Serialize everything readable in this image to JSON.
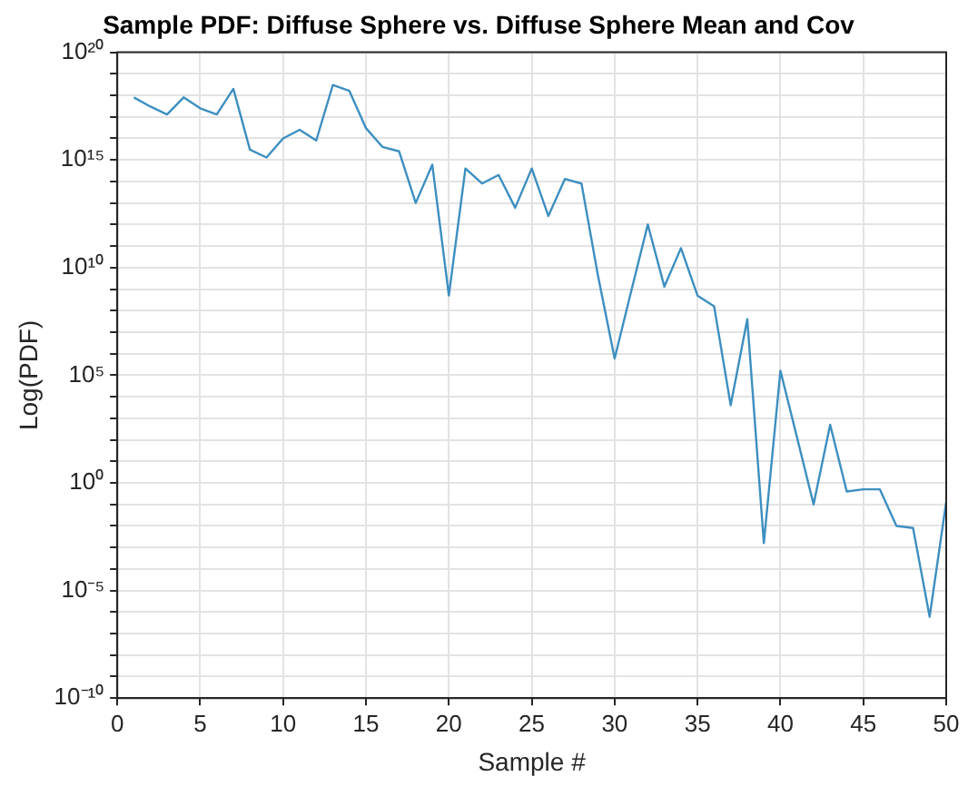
{
  "chart_data": {
    "type": "line",
    "title": "Sample PDF: Diffuse Sphere vs. Diffuse Sphere Mean and Cov",
    "xlabel": "Sample #",
    "ylabel": "Log(PDF)",
    "x": [
      1,
      2,
      3,
      4,
      5,
      6,
      7,
      8,
      9,
      10,
      11,
      12,
      13,
      14,
      15,
      16,
      17,
      18,
      19,
      20,
      21,
      22,
      23,
      24,
      25,
      26,
      27,
      28,
      29,
      30,
      31,
      32,
      33,
      34,
      35,
      36,
      37,
      38,
      39,
      40,
      41,
      42,
      43,
      44,
      45,
      46,
      47,
      48,
      49,
      50
    ],
    "series": [
      {
        "color": "#3d8fc0",
        "values": [
          8e+17,
          3e+17,
          1.3e+17,
          8e+17,
          2.5e+17,
          1.3e+17,
          2e+18,
          3000000000000000.0,
          1300000000000000.0,
          1e+16,
          2.5e+16,
          8000000000000000.0,
          3e+18,
          1.6e+18,
          3e+16,
          4000000000000000.0,
          2500000000000000.0,
          10000000000000.0,
          600000000000000.0,
          500000000.0,
          400000000000000.0,
          80000000000000.0,
          200000000000000.0,
          6000000000000.0,
          400000000000000.0,
          2500000000000.0,
          130000000000000.0,
          80000000000000.0,
          4000000000.0,
          600000.0,
          800000000.0,
          1000000000000.0,
          1300000000.0,
          80000000000.0,
          500000000.0,
          160000000.0,
          4000.0,
          40000000.0,
          0.0016,
          160000.0,
          130,
          0.1,
          500,
          0.4,
          0.5,
          0.5,
          0.01,
          0.008,
          6e-07,
          0.13
        ]
      }
    ],
    "xlim": [
      0,
      50
    ],
    "xticks": [
      0,
      5,
      10,
      15,
      20,
      25,
      30,
      35,
      40,
      45,
      50
    ],
    "log": "y",
    "ylim": [
      1e-10,
      1e+20
    ],
    "yticks": [
      {
        "value": 1e-10,
        "label": "10⁻¹⁰"
      },
      {
        "value": 1e-09,
        "label": null
      },
      {
        "value": 1e-08,
        "label": null
      },
      {
        "value": 1e-07,
        "label": null
      },
      {
        "value": 1e-06,
        "label": null
      },
      {
        "value": 1e-05,
        "label": "10⁻⁵"
      },
      {
        "value": 0.0001,
        "label": null
      },
      {
        "value": 0.001,
        "label": null
      },
      {
        "value": 0.01,
        "label": null
      },
      {
        "value": 0.1,
        "label": null
      },
      {
        "value": 1,
        "label": "10⁰"
      },
      {
        "value": 10,
        "label": null
      },
      {
        "value": 100,
        "label": null
      },
      {
        "value": 1000.0,
        "label": null
      },
      {
        "value": 10000.0,
        "label": null
      },
      {
        "value": 100000.0,
        "label": "10⁵"
      },
      {
        "value": 1000000.0,
        "label": null
      },
      {
        "value": 10000000.0,
        "label": null
      },
      {
        "value": 100000000.0,
        "label": null
      },
      {
        "value": 1000000000.0,
        "label": null
      },
      {
        "value": 10000000000.0,
        "label": "10¹⁰"
      },
      {
        "value": 100000000000.0,
        "label": null
      },
      {
        "value": 1000000000000.0,
        "label": null
      },
      {
        "value": 10000000000000.0,
        "label": null
      },
      {
        "value": 100000000000000.0,
        "label": null
      },
      {
        "value": 1000000000000000.0,
        "label": "10¹⁵"
      },
      {
        "value": 1e+16,
        "label": null
      },
      {
        "value": 1e+17,
        "label": null
      },
      {
        "value": 1e+18,
        "label": null
      },
      {
        "value": 1e+19,
        "label": null
      },
      {
        "value": 1e+20,
        "label": "10²⁰"
      }
    ],
    "grid": true,
    "marker": "none",
    "line_style": "solid"
  }
}
